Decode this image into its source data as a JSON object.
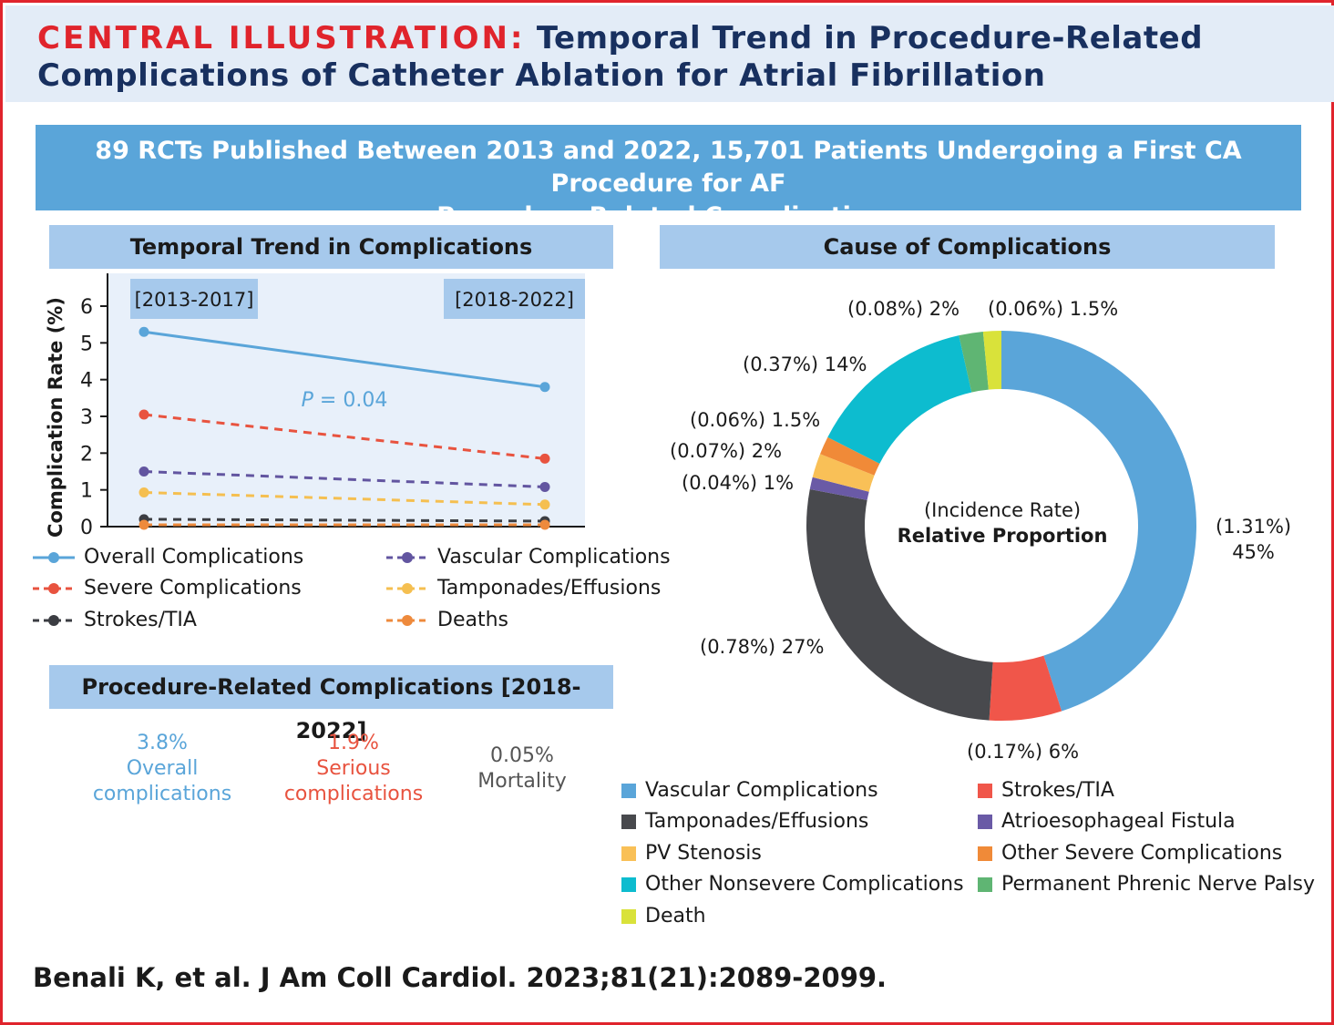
{
  "header": {
    "kicker": "CENTRAL ILLUSTRATION:",
    "title_line1": "Temporal Trend in Procedure-Related",
    "title_line2": "Complications of Catheter Ablation for Atrial Fibrillation"
  },
  "banner": {
    "line1": "89 RCTs Published Between 2013 and 2022, 15,701 Patients Undergoing a First CA Procedure for AF",
    "line2": "Procedure-Related Complications"
  },
  "trend_panel": {
    "title": "Temporal Trend in Complications"
  },
  "cause_panel": {
    "title": "Cause of Complications"
  },
  "procedure_panel": {
    "title": "Procedure-Related Complications [2018-2022]",
    "stats": [
      {
        "value": "3.8%",
        "line1": "Overall",
        "line2": "complications",
        "color": "#5aa5d9"
      },
      {
        "value": "1.9%",
        "line1": "Serious",
        "line2": "complications",
        "color": "#e8533f"
      },
      {
        "value": "0.05%",
        "line1": "Mortality",
        "line2": "",
        "color": "#555555"
      }
    ]
  },
  "citation": "Benali K, et al. J Am Coll Cardiol. 2023;81(21):2089-2099.",
  "colors": {
    "accent_red": "#e0242c",
    "navy": "#18305f",
    "banner_blue": "#5aa5d9",
    "section_blue": "#a6c9ec",
    "plot_bg": "#e8f0fa"
  },
  "chart_data": [
    {
      "type": "line",
      "ylabel": "Complication Rate (%)",
      "xlabel": "",
      "x": [
        "[2013-2017]",
        "[2018-2022]"
      ],
      "ylim": [
        0,
        6
      ],
      "yticks": [
        "0",
        "1",
        "2",
        "3",
        "4",
        "5",
        "6"
      ],
      "annotation": {
        "italic": "P",
        "rest": " = 0.04"
      },
      "series": [
        {
          "name": "Overall Complications",
          "values": [
            5.3,
            3.8
          ],
          "color": "#5aa5d9",
          "dash": "solid"
        },
        {
          "name": "Severe Complications",
          "values": [
            3.05,
            1.85
          ],
          "color": "#e8533f",
          "dash": "dashed"
        },
        {
          "name": "Vascular Complications",
          "values": [
            1.5,
            1.08
          ],
          "color": "#6255a0",
          "dash": "dashed"
        },
        {
          "name": "Tamponades/Effusions",
          "values": [
            0.93,
            0.6
          ],
          "color": "#f5bf50",
          "dash": "dashed"
        },
        {
          "name": "Strokes/TIA",
          "values": [
            0.2,
            0.15
          ],
          "color": "#3b3d42",
          "dash": "dashed"
        },
        {
          "name": "Deaths",
          "values": [
            0.05,
            0.05
          ],
          "color": "#ee8a3c",
          "dash": "dashed"
        }
      ]
    },
    {
      "type": "pie",
      "center_label_line1": "(Incidence Rate)",
      "center_label_line2": "Relative Proportion",
      "slices": [
        {
          "name": "Vascular Complications",
          "percent": 45,
          "rate": "(1.31%)",
          "label": "45%",
          "color": "#5aa5d9"
        },
        {
          "name": "Strokes/TIA",
          "percent": 6,
          "rate": "(0.17%)",
          "label": "6%",
          "color": "#f0564a"
        },
        {
          "name": "Tamponades/Effusions",
          "percent": 27,
          "rate": "(0.78%)",
          "label": "27%",
          "color": "#48494d"
        },
        {
          "name": "Atrioesophageal Fistula",
          "percent": 1,
          "rate": "(0.04%)",
          "label": "1%",
          "color": "#6a5aa6"
        },
        {
          "name": "PV Stenosis",
          "percent": 2,
          "rate": "(0.07%)",
          "label": "2%",
          "color": "#f9c057"
        },
        {
          "name": "Other Severe Complications",
          "percent": 1.5,
          "rate": "(0.06%)",
          "label": "1.5%",
          "color": "#f08a38"
        },
        {
          "name": "Other Nonsevere Complications",
          "percent": 14,
          "rate": "(0.37%)",
          "label": "14%",
          "color": "#0dbccf"
        },
        {
          "name": "Permanent Phrenic Nerve Palsy",
          "percent": 2,
          "rate": "(0.08%)",
          "label": "2%",
          "color": "#5fb573"
        },
        {
          "name": "Death",
          "percent": 1.5,
          "rate": "(0.06%)",
          "label": "1.5%",
          "color": "#d9e23a"
        }
      ],
      "legend_order": [
        "Vascular Complications",
        "Strokes/TIA",
        "Tamponades/Effusions",
        "Atrioesophageal Fistula",
        "PV Stenosis",
        "Other Severe Complications",
        "Other Nonsevere Complications",
        "Permanent Phrenic Nerve Palsy",
        "Death"
      ]
    }
  ]
}
